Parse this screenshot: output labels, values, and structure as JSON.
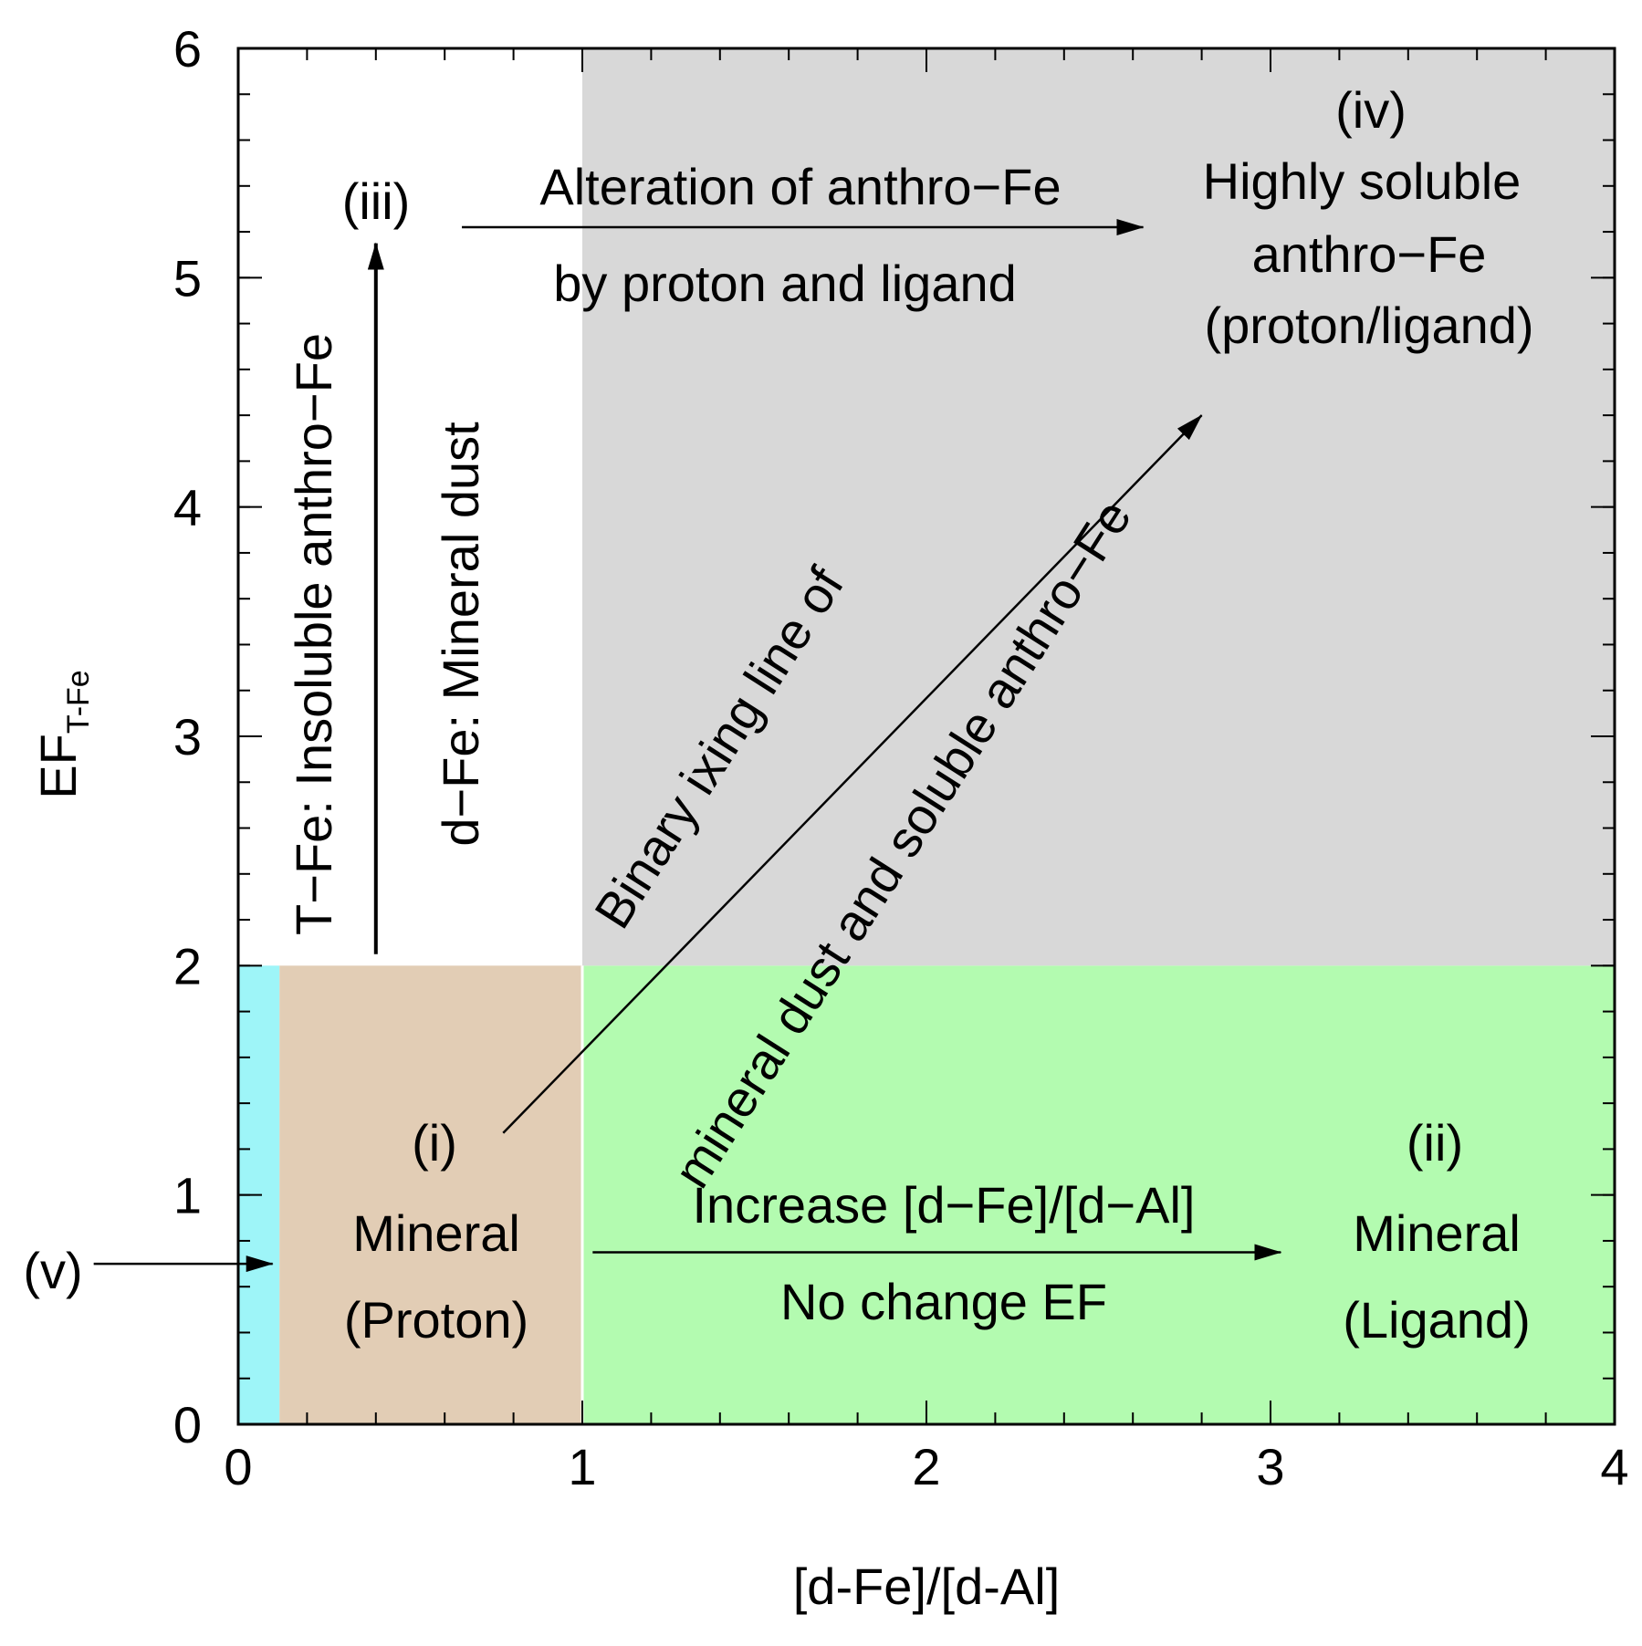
{
  "chart_data": {
    "type": "area",
    "xlabel": "[d-Fe]/[d-Al]",
    "ylabel": {
      "main": "EF",
      "subscript": "T-Fe"
    },
    "xlim": [
      0,
      4
    ],
    "ylim": [
      0,
      6
    ],
    "x_ticks": [
      "0",
      "1",
      "2",
      "3",
      "4"
    ],
    "y_ticks": [
      "0",
      "1",
      "2",
      "3",
      "4",
      "5",
      "6"
    ],
    "x_minor_step": 0.2,
    "y_minor_step": 0.2,
    "grid": false,
    "regions": [
      {
        "name": "(v)",
        "x": [
          0,
          0.12
        ],
        "y": [
          0,
          2
        ],
        "color": "#9ef5f8"
      },
      {
        "name": "(i)",
        "x": [
          0.12,
          1
        ],
        "y": [
          0,
          2
        ],
        "color": "#e2cdb5"
      },
      {
        "name": "(ii)",
        "x": [
          1,
          4
        ],
        "y": [
          0,
          2
        ],
        "color": "#b3fbb0"
      },
      {
        "name": "(iv)",
        "x": [
          1,
          4
        ],
        "y": [
          2,
          6
        ],
        "color": "#d8d8d8"
      }
    ],
    "arrows": [
      {
        "from": [
          0.4,
          2.05
        ],
        "to": [
          0.4,
          5.15
        ]
      },
      {
        "from": [
          0.65,
          5.22
        ],
        "to": [
          2.63,
          5.22
        ]
      },
      {
        "from": [
          0.77,
          1.27
        ],
        "to": [
          2.8,
          4.4
        ]
      },
      {
        "from": [
          1.03,
          0.75
        ],
        "to": [
          3.03,
          0.75
        ]
      },
      {
        "from": [
          -0.42,
          0.7
        ],
        "to": [
          0.1,
          0.7
        ]
      }
    ],
    "annotations": {
      "region_iii": "(iii)",
      "alteration_line1": "Alteration of anthro−Fe",
      "alteration_line2": "by proton and ligand",
      "region_iv_label": "(iv)",
      "region_iv_line1": "Highly soluble",
      "region_iv_line2": "anthro−Fe",
      "region_iv_line3": "(proton/ligand)",
      "vertical_tfe": "T−Fe: Insoluble anthro−Fe",
      "vertical_dfe": "d−Fe: Mineral dust",
      "diagonal_line1": "Binary ixing line of",
      "diagonal_line2": "mineral dust and soluble anthro−Fe",
      "region_i_label": "(i)",
      "region_i_line1": "Mineral",
      "region_i_line2": "(Proton)",
      "increase_line1": "Increase [d−Fe]/[d−Al]",
      "increase_line2": "No change EF",
      "region_ii_label": "(ii)",
      "region_ii_line1": "Mineral",
      "region_ii_line2": "(Ligand)",
      "region_v_label": "(v)"
    }
  }
}
